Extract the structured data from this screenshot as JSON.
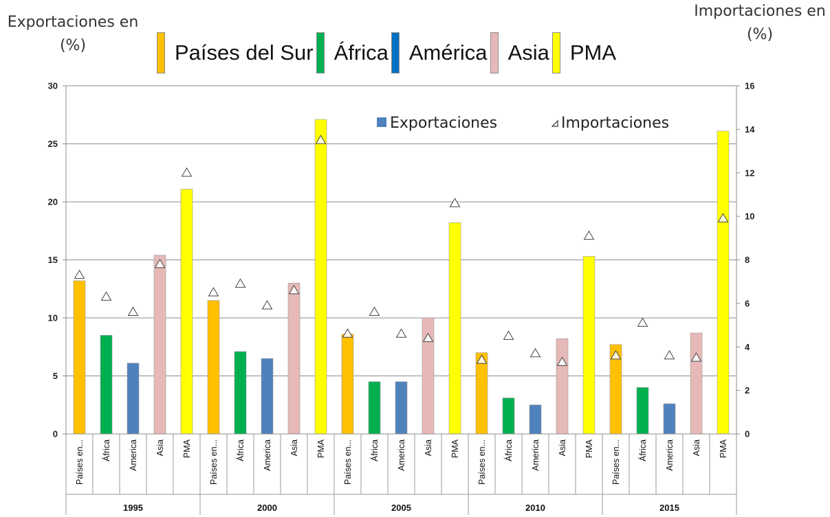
{
  "chart_data": {
    "type": "bar",
    "left_axis_title": "Exportaciones en (%)",
    "right_axis_title": "Importaciones en (%)",
    "header_legend": [
      {
        "label": "Países del Sur",
        "color": "#FFC000"
      },
      {
        "label": "África",
        "color": "#00B050"
      },
      {
        "label": "América",
        "color": "#0070C0"
      },
      {
        "label": "Asia",
        "color": "#E6B9B8"
      },
      {
        "label": "PMA",
        "color": "#FFFF00"
      }
    ],
    "inner_legend": {
      "exports_label": "Exportaciones",
      "imports_label": "Importaciones",
      "exports_color": "#4F81BD"
    },
    "categories": [
      "Países en...",
      "África",
      "America",
      "Asia",
      "PMA"
    ],
    "category_colors": [
      "#FFC000",
      "#00B050",
      "#4F81BD",
      "#E6B9B8",
      "#FFFF00"
    ],
    "groups": [
      "1995",
      "2000",
      "2005",
      "2010",
      "2015"
    ],
    "left_ylim": [
      0,
      30
    ],
    "left_ticks": [
      0,
      5,
      10,
      15,
      20,
      25,
      30
    ],
    "right_ylim": [
      0,
      16
    ],
    "right_ticks": [
      0,
      2,
      4,
      6,
      8,
      10,
      12,
      14,
      16
    ],
    "grid": true,
    "series": [
      {
        "name": "Exportaciones",
        "axis": "left",
        "values": [
          [
            13.2,
            8.5,
            6.1,
            15.4,
            21.1
          ],
          [
            11.5,
            7.1,
            6.5,
            13.0,
            27.1
          ],
          [
            8.6,
            4.5,
            4.5,
            10.0,
            18.2
          ],
          [
            7.0,
            3.1,
            2.5,
            8.2,
            15.3
          ],
          [
            7.7,
            4.0,
            2.6,
            8.7,
            26.1
          ]
        ]
      },
      {
        "name": "Importaciones",
        "axis": "right",
        "values": [
          [
            7.3,
            6.3,
            5.6,
            7.8,
            12.0
          ],
          [
            6.5,
            6.9,
            5.9,
            6.6,
            13.5
          ],
          [
            4.6,
            5.6,
            4.6,
            4.4,
            10.6
          ],
          [
            3.4,
            4.5,
            3.7,
            3.3,
            9.1
          ],
          [
            3.6,
            5.1,
            3.6,
            3.5,
            9.9
          ]
        ]
      }
    ]
  }
}
